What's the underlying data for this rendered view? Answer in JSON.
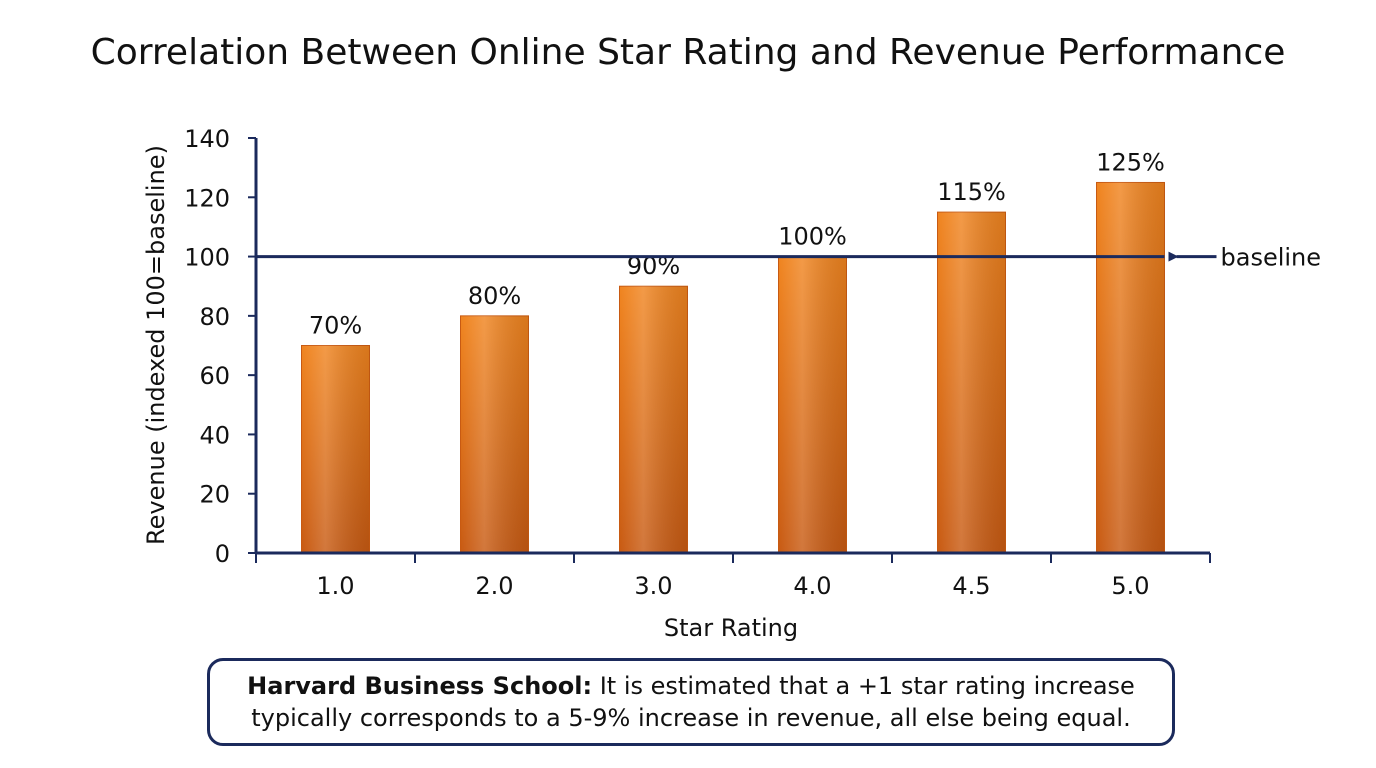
{
  "chart_data": {
    "type": "bar",
    "title": "Correlation Between Online Star Rating and Revenue Performance",
    "xlabel": "Star Rating",
    "ylabel": "Revenue (indexed 100=baseline)",
    "categories": [
      "1.0",
      "2.0",
      "3.0",
      "4.0",
      "4.5",
      "5.0"
    ],
    "values": [
      70,
      80,
      90,
      100,
      115,
      125
    ],
    "data_labels": [
      "70%",
      "80%",
      "90%",
      "100%",
      "115%",
      "125%"
    ],
    "ylim": [
      0,
      140
    ],
    "yticks": [
      0,
      20,
      40,
      60,
      80,
      100,
      120,
      140
    ],
    "grid": false,
    "legend": "none",
    "bar_color": "#f0841f",
    "bar_color_dark": "#c85a12",
    "axis_color": "#1b2a5c",
    "reference_line": {
      "value": 100,
      "label": "baseline",
      "color": "#1b2a5c"
    }
  },
  "callout": {
    "source": "Harvard Business School:",
    "text": "It is estimated that a +1 star rating increase typically corresponds to a 5-9% increase in revenue, all else being equal."
  }
}
